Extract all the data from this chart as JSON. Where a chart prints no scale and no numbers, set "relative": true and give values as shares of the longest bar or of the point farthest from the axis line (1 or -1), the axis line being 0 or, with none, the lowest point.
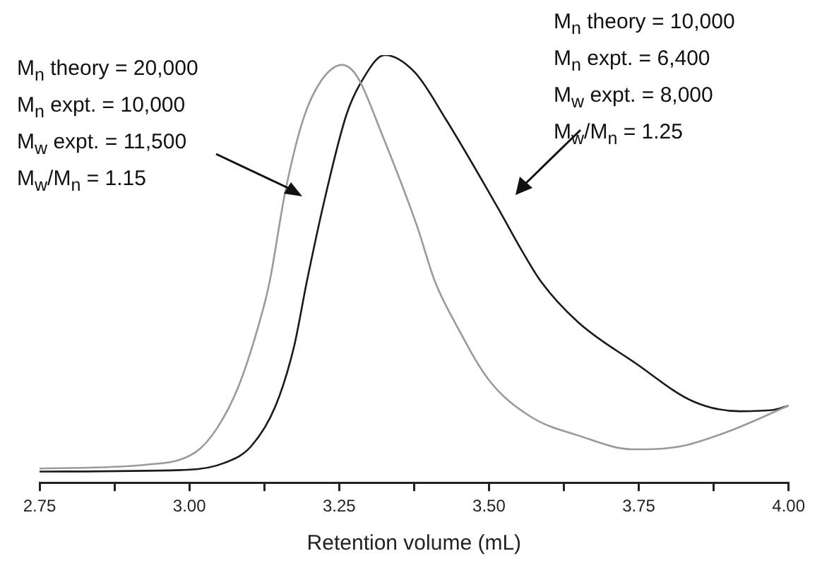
{
  "chart_data": {
    "type": "line",
    "relative": true,
    "xlabel": "Retention volume (mL)",
    "xlim": [
      2.75,
      4.0
    ],
    "xticks": [
      {
        "value": 2.75,
        "label": "2.75"
      },
      {
        "value": 2.875,
        "label": null
      },
      {
        "value": 3.0,
        "label": "3.00"
      },
      {
        "value": 3.125,
        "label": null
      },
      {
        "value": 3.25,
        "label": "3.25"
      },
      {
        "value": 3.375,
        "label": null
      },
      {
        "value": 3.5,
        "label": "3.50"
      },
      {
        "value": 3.625,
        "label": null
      },
      {
        "value": 3.75,
        "label": "3.75"
      },
      {
        "value": 3.875,
        "label": null
      },
      {
        "value": 4.0,
        "label": "4.00"
      }
    ],
    "grid": false,
    "legend": false,
    "marker": "none",
    "line_style": "solid",
    "annotations": [
      "M$_{n}$ theory = 20,000",
      "M$_{n}$ expt. = 10,000",
      "M$_{w}$ expt. = 11,500",
      "M$_{w}$/M$_{n}$ = 1.15",
      "M$_{n}$ theory = 10,000",
      "M$_{n}$ expt. = 6,400",
      "M$_{w}$ expt. = 8,000",
      "M$_{w}$/M$_{n}$ = 1.25"
    ],
    "series": [
      {
        "color": "#9a9a9a",
        "x": [
          2.75,
          2.928,
          3.011,
          3.046,
          3.082,
          3.118,
          3.134,
          3.16,
          3.19,
          3.22,
          3.255,
          3.28,
          3.32,
          3.38,
          3.41,
          3.445,
          3.5,
          3.57,
          3.65,
          3.74,
          3.82,
          3.9,
          4.0
        ],
        "values": [
          0.033,
          0.042,
          0.072,
          0.127,
          0.225,
          0.38,
          0.47,
          0.68,
          0.85,
          0.94,
          0.977,
          0.95,
          0.82,
          0.6,
          0.47,
          0.37,
          0.24,
          0.154,
          0.11,
          0.078,
          0.085,
          0.12,
          0.18
        ]
      },
      {
        "color": "#1a1a1a",
        "x": [
          2.75,
          2.997,
          3.058,
          3.103,
          3.144,
          3.175,
          3.196,
          3.227,
          3.262,
          3.288,
          3.326,
          3.376,
          3.428,
          3.516,
          3.556,
          3.587,
          3.649,
          3.744,
          3.841,
          3.919,
          3.974,
          4.0
        ],
        "values": [
          0.026,
          0.03,
          0.046,
          0.085,
          0.18,
          0.32,
          0.47,
          0.67,
          0.86,
          0.94,
          1,
          0.96,
          0.85,
          0.64,
          0.54,
          0.47,
          0.375,
          0.28,
          0.19,
          0.167,
          0.17,
          0.18
        ]
      }
    ]
  }
}
